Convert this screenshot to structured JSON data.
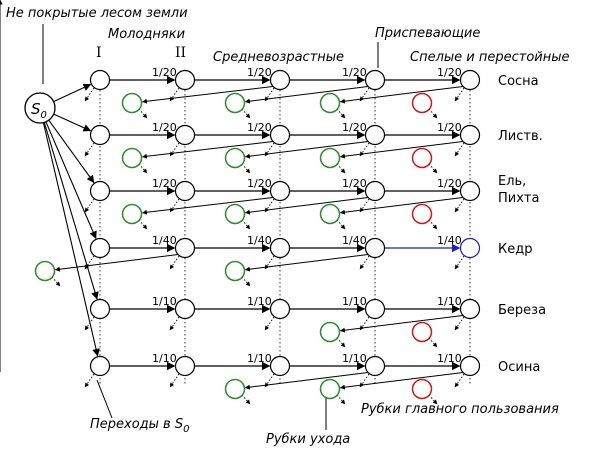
{
  "labels": {
    "unforested": "Не покрытые лесом земли",
    "young": "Молодняки",
    "young_I": "I",
    "young_II": "II",
    "middle": "Средневозрастные",
    "maturing": "Приспевающие",
    "mature": "Спелые и перестойные",
    "transitions_prefix": "Переходы в S",
    "transitions_sub": "0",
    "thinning": "Рубки ухода",
    "main_cutting": "Рубки главного пользования",
    "s0_main": "S",
    "s0_sub": "0"
  },
  "rows": [
    {
      "species": [
        "Сосна"
      ],
      "rate": "1/20",
      "thinning_cols": [
        1,
        2,
        3
      ],
      "cut_col": 4,
      "highlight": false
    },
    {
      "species": [
        "Листв."
      ],
      "rate": "1/20",
      "thinning_cols": [
        1,
        2,
        3
      ],
      "cut_col": 4,
      "highlight": false
    },
    {
      "species": [
        "Ель,",
        "Пихта"
      ],
      "rate": "1/20",
      "thinning_cols": [
        1,
        2,
        3
      ],
      "cut_col": 4,
      "highlight": false
    },
    {
      "species": [
        "Кедр"
      ],
      "rate": "1/40",
      "thinning_cols": [
        0,
        2
      ],
      "cut_col": null,
      "highlight": true
    },
    {
      "species": [
        "Береза"
      ],
      "rate": "1/10",
      "thinning_cols": [
        3
      ],
      "cut_col": 4,
      "highlight": false
    },
    {
      "species": [
        "Осина"
      ],
      "rate": "1/10",
      "thinning_cols": [
        2,
        3
      ],
      "cut_col": 4,
      "highlight": false
    }
  ],
  "colors": {
    "node": "#000000",
    "thinning": "#2e8b2e",
    "cutting": "#cc1a1a",
    "highlight": "#1f1fb4"
  }
}
